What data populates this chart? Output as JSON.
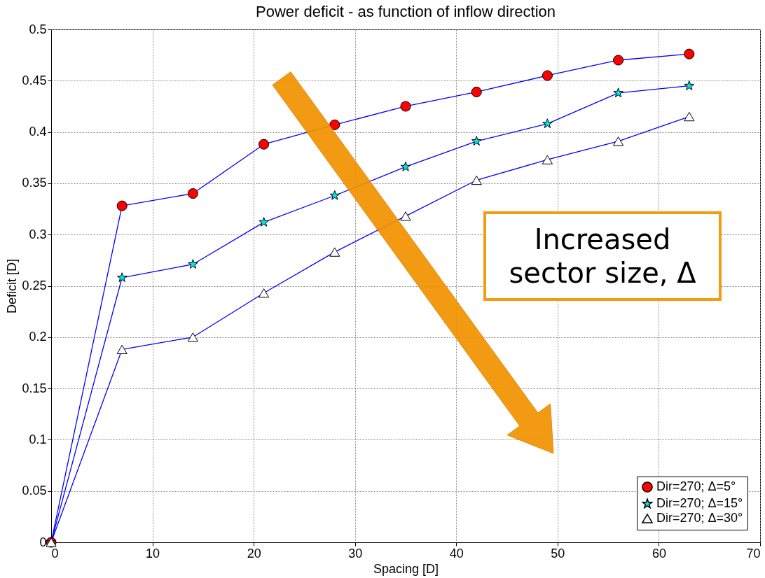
{
  "chart_data": {
    "type": "line",
    "title": "Power deficit - as function of inflow direction",
    "xlabel": "Spacing [D]",
    "ylabel": "Deficit [D]",
    "x": [
      0,
      7,
      14,
      21,
      28,
      35,
      42,
      49,
      56,
      63
    ],
    "series": [
      {
        "name": "Dir=270; Δ=5°",
        "color": "#ff0000",
        "marker": "circle",
        "values": [
          0,
          0.328,
          0.34,
          0.388,
          0.407,
          0.425,
          0.439,
          0.455,
          0.47,
          0.476
        ]
      },
      {
        "name": "Dir=270; Δ=15°",
        "color": "#00e5e5",
        "marker": "star",
        "values": [
          0,
          0.258,
          0.271,
          0.312,
          0.338,
          0.366,
          0.391,
          0.408,
          0.438,
          0.445
        ]
      },
      {
        "name": "Dir=270; Δ=30°",
        "color": "#ffffff",
        "marker": "triangle",
        "values": [
          0,
          0.188,
          0.2,
          0.243,
          0.283,
          0.318,
          0.353,
          0.373,
          0.391,
          0.415
        ]
      }
    ],
    "xlim": [
      0,
      70
    ],
    "xticks": [
      0,
      10,
      20,
      30,
      40,
      50,
      60,
      70
    ],
    "ylim": [
      0,
      0.5
    ],
    "yticks": [
      0,
      0.05,
      0.1,
      0.15,
      0.2,
      0.25,
      0.3,
      0.35,
      0.4,
      0.45,
      0.5
    ],
    "grid": true,
    "legend": "bottom right",
    "line_style": "solid",
    "annotations": [
      "Increased sector size, Δ"
    ]
  }
}
